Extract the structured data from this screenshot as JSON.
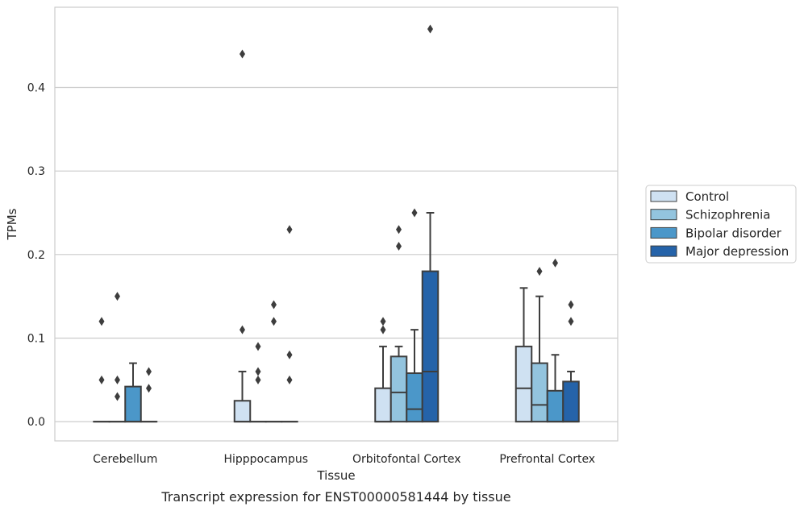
{
  "chart_data": {
    "type": "box",
    "title": "",
    "caption": "Transcript expression for ENST00000581444 by tissue",
    "xlabel": "Tissue",
    "ylabel": "TPMs",
    "ylim": [
      -0.023,
      0.496
    ],
    "yticks": [
      "0.0",
      "0.1",
      "0.2",
      "0.3",
      "0.4"
    ],
    "categories": [
      "Cerebellum",
      "Hipppocampus",
      "Orbitofontal Cortex",
      "Prefrontal Cortex"
    ],
    "grid": "horizontal",
    "legend_position": "right",
    "colors": [
      "#cfe1f2",
      "#93c4de",
      "#4b97c9",
      "#2563a9"
    ],
    "series": [
      {
        "name": "Control",
        "boxes": [
          {
            "q1": 0,
            "median": 0,
            "q3": 0,
            "whislo": 0,
            "whishi": 0,
            "fliers": [
              0.12,
              0.05
            ]
          },
          {
            "q1": 0,
            "median": 0,
            "q3": 0.025,
            "whislo": 0,
            "whishi": 0.06,
            "fliers": [
              0.44,
              0.11
            ]
          },
          {
            "q1": 0,
            "median": 0,
            "q3": 0.04,
            "whislo": 0,
            "whishi": 0.09,
            "fliers": [
              0.12,
              0.11
            ]
          },
          {
            "q1": 0,
            "median": 0.04,
            "q3": 0.09,
            "whislo": 0,
            "whishi": 0.16,
            "fliers": []
          }
        ]
      },
      {
        "name": "Schizophrenia",
        "boxes": [
          {
            "q1": 0,
            "median": 0,
            "q3": 0,
            "whislo": 0,
            "whishi": 0,
            "fliers": [
              0.15,
              0.05,
              0.03
            ]
          },
          {
            "q1": 0,
            "median": 0,
            "q3": 0,
            "whislo": 0,
            "whishi": 0,
            "fliers": [
              0.09,
              0.06,
              0.05
            ]
          },
          {
            "q1": 0,
            "median": 0.035,
            "q3": 0.078,
            "whislo": 0,
            "whishi": 0.09,
            "fliers": [
              0.23,
              0.21
            ]
          },
          {
            "q1": 0,
            "median": 0.02,
            "q3": 0.07,
            "whislo": 0,
            "whishi": 0.15,
            "fliers": [
              0.18
            ]
          }
        ]
      },
      {
        "name": "Bipolar disorder",
        "boxes": [
          {
            "q1": 0,
            "median": 0,
            "q3": 0.042,
            "whislo": 0,
            "whishi": 0.07,
            "fliers": []
          },
          {
            "q1": 0,
            "median": 0,
            "q3": 0,
            "whislo": 0,
            "whishi": 0,
            "fliers": [
              0.14,
              0.12
            ]
          },
          {
            "q1": 0,
            "median": 0.015,
            "q3": 0.058,
            "whislo": 0,
            "whishi": 0.11,
            "fliers": [
              0.25
            ]
          },
          {
            "q1": 0,
            "median": 0,
            "q3": 0.037,
            "whislo": 0,
            "whishi": 0.08,
            "fliers": [
              0.19
            ]
          }
        ]
      },
      {
        "name": "Major depression",
        "boxes": [
          {
            "q1": 0,
            "median": 0,
            "q3": 0,
            "whislo": 0,
            "whishi": 0,
            "fliers": [
              0.06,
              0.04
            ]
          },
          {
            "q1": 0,
            "median": 0,
            "q3": 0,
            "whislo": 0,
            "whishi": 0,
            "fliers": [
              0.23,
              0.08,
              0.05
            ]
          },
          {
            "q1": 0,
            "median": 0.06,
            "q3": 0.18,
            "whislo": 0,
            "whishi": 0.25,
            "fliers": [
              0.47
            ]
          },
          {
            "q1": 0,
            "median": 0,
            "q3": 0.048,
            "whislo": 0,
            "whishi": 0.06,
            "fliers": [
              0.14,
              0.12
            ]
          }
        ]
      }
    ]
  }
}
